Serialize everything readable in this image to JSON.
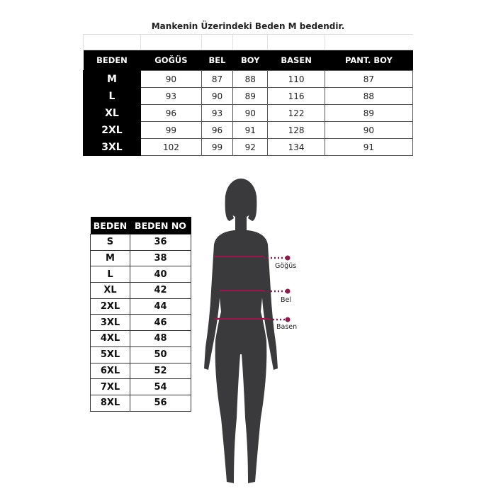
{
  "size_table": {
    "title": "Mankenin Üzerindeki Beden M bedendir.",
    "headers": [
      "BEDEN",
      "GOĞÜS",
      "BEL",
      "BOY",
      "BASEN",
      "PANT. BOY"
    ],
    "rows": [
      [
        "M",
        "90",
        "87",
        "88",
        "110",
        "87"
      ],
      [
        "L",
        "93",
        "90",
        "89",
        "116",
        "88"
      ],
      [
        "XL",
        "96",
        "93",
        "90",
        "122",
        "89"
      ],
      [
        "2XL",
        "99",
        "96",
        "91",
        "128",
        "90"
      ],
      [
        "3XL",
        "102",
        "99",
        "92",
        "134",
        "91"
      ]
    ]
  },
  "number_table": {
    "headers": [
      "BEDEN",
      "BEDEN NO"
    ],
    "rows": [
      [
        "S",
        "36"
      ],
      [
        "M",
        "38"
      ],
      [
        "L",
        "40"
      ],
      [
        "XL",
        "42"
      ],
      [
        "2XL",
        "44"
      ],
      [
        "3XL",
        "46"
      ],
      [
        "4XL",
        "48"
      ],
      [
        "5XL",
        "50"
      ],
      [
        "6XL",
        "52"
      ],
      [
        "7XL",
        "54"
      ],
      [
        "8XL",
        "56"
      ]
    ]
  },
  "figure": {
    "labels": {
      "chest": "Göğüs",
      "waist": "Bel",
      "hip": "Basen"
    },
    "colors": {
      "silhouette": "#3a3a3c",
      "measure": "#8b1d4a"
    }
  }
}
